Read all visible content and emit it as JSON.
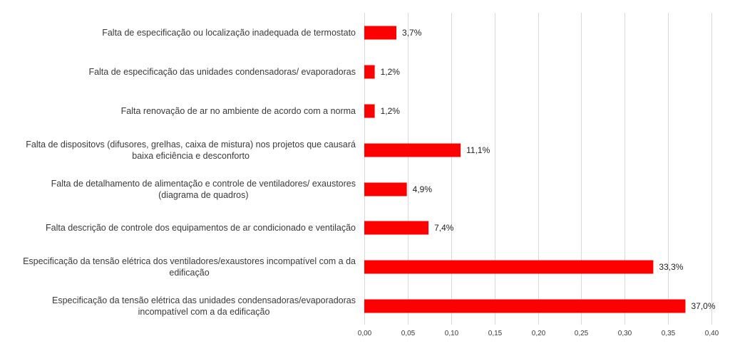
{
  "chart_data": {
    "type": "bar",
    "orientation": "horizontal",
    "categories": [
      [
        "Falta de especificação ou localização inadequada de termostato"
      ],
      [
        "Falta de especificação das unidades condensadoras/ evaporadoras"
      ],
      [
        "Falta renovação de ar no ambiente de acordo com a norma"
      ],
      [
        "Falta de dispositovs (difusores, grelhas, caixa de mistura) nos projetos que causará",
        "baixa eficiência e desconforto"
      ],
      [
        "Falta de detalhamento de alimentação e controle de ventiladores/ exaustores",
        "(diagrama de quadros)"
      ],
      [
        "Falta descrição de controle dos equipamentos de ar condicionado e ventilação"
      ],
      [
        "Especificação da tensão elétrica dos ventiladores/exaustores incompatível com a da",
        "edificação"
      ],
      [
        "Especificação da tensão elétrica das unidades condensadoras/evaporadoras",
        "incompatível com a da edificação"
      ]
    ],
    "values": [
      0.037,
      0.012,
      0.012,
      0.111,
      0.049,
      0.074,
      0.333,
      0.37
    ],
    "data_labels": [
      "3,7%",
      "1,2%",
      "1,2%",
      "11,1%",
      "4,9%",
      "7,4%",
      "33,3%",
      "37,0%"
    ],
    "xlim": [
      0,
      0.4
    ],
    "xticks": [
      0,
      0.05,
      0.1,
      0.15,
      0.2,
      0.25,
      0.3,
      0.35,
      0.4
    ],
    "xtick_labels": [
      "0,00",
      "0,05",
      "0,10",
      "0,15",
      "0,20",
      "0,25",
      "0,30",
      "0,35",
      "0,40"
    ],
    "grid": true,
    "legend": "none",
    "bar_color": "#ff0000",
    "grid_color": "#d9d9d9"
  }
}
